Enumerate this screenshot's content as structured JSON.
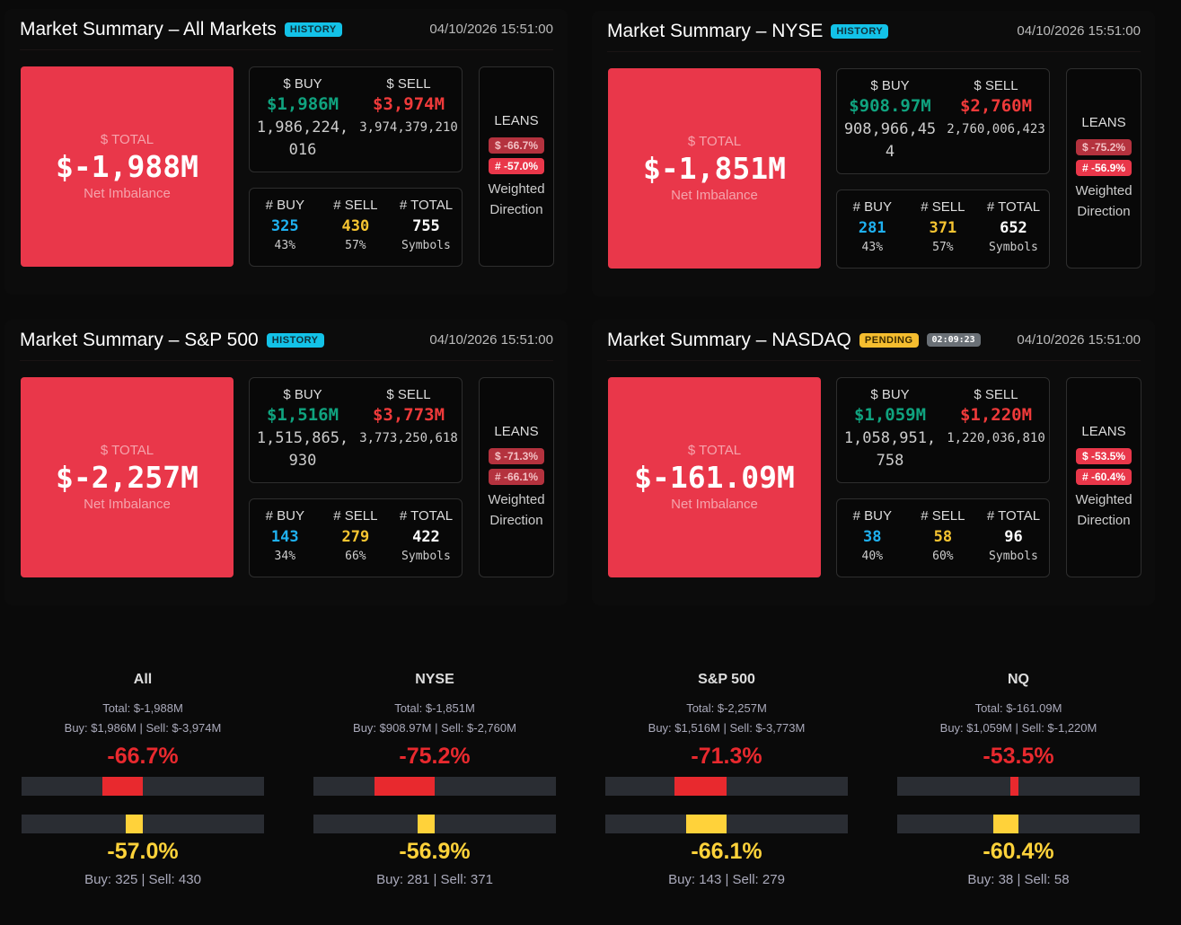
{
  "colors": {
    "buy": "#10a37f",
    "sell": "#ef3a3a",
    "count_buy": "#1fb1f0",
    "count_sell": "#f7c531",
    "count_total": "#ffffff",
    "dollar_bar": "#e8292e",
    "count_bar": "#ffd23a",
    "dollar_pct": "#e8292e",
    "count_pct": "#ffd23a"
  },
  "labels": {
    "total": "$ TOTAL",
    "net": "Net Imbalance",
    "buy": "$ BUY",
    "sell": "$ SELL",
    "nbuy": "# BUY",
    "nsell": "# SELL",
    "ntotal": "# TOTAL",
    "symbols": "Symbols",
    "leans": "LEANS",
    "weighted": "Weighted",
    "direction": "Direction"
  },
  "cards": [
    {
      "title": "Market Summary – All Markets",
      "badge": "HISTORY",
      "badge_type": "history",
      "timestamp": "04/10/2026 15:51:00",
      "total": "$-1,988M",
      "buy": "$1,986M",
      "sell": "$3,974M",
      "buy_raw": "1,986,224,016",
      "sell_raw": "3,974,379,210",
      "nbuy": "325",
      "nsell": "430",
      "ntotal": "755",
      "buy_pct": "43%",
      "sell_pct": "57%",
      "lean_dollar": "$ -66.7%",
      "lean_dollar_style": "dim",
      "lean_count": "# -57.0%",
      "lean_count_style": "strong"
    },
    {
      "title": "Market Summary – NYSE",
      "badge": "HISTORY",
      "badge_type": "history",
      "timestamp": "04/10/2026 15:51:00",
      "total": "$-1,851M",
      "buy": "$908.97M",
      "sell": "$2,760M",
      "buy_raw": "908,966,454",
      "sell_raw": "2,760,006,423",
      "nbuy": "281",
      "nsell": "371",
      "ntotal": "652",
      "buy_pct": "43%",
      "sell_pct": "57%",
      "lean_dollar": "$ -75.2%",
      "lean_dollar_style": "dim",
      "lean_count": "# -56.9%",
      "lean_count_style": "strong"
    },
    {
      "title": "Market Summary – S&P 500",
      "badge": "HISTORY",
      "badge_type": "history",
      "timestamp": "04/10/2026 15:51:00",
      "total": "$-2,257M",
      "buy": "$1,516M",
      "sell": "$3,773M",
      "buy_raw": "1,515,865,930",
      "sell_raw": "3,773,250,618",
      "nbuy": "143",
      "nsell": "279",
      "ntotal": "422",
      "buy_pct": "34%",
      "sell_pct": "66%",
      "lean_dollar": "$ -71.3%",
      "lean_dollar_style": "dim",
      "lean_count": "# -66.1%",
      "lean_count_style": "dim"
    },
    {
      "title": "Market Summary – NASDAQ",
      "badge": "PENDING",
      "badge_type": "pending",
      "timer": "02:09:23",
      "timestamp": "04/10/2026 15:51:00",
      "total": "$-161.09M",
      "buy": "$1,059M",
      "sell": "$1,220M",
      "buy_raw": "1,058,951,758",
      "sell_raw": "1,220,036,810",
      "nbuy": "38",
      "nsell": "58",
      "ntotal": "96",
      "buy_pct": "40%",
      "sell_pct": "60%",
      "lean_dollar": "$ -53.5%",
      "lean_dollar_style": "strong",
      "lean_count": "# -60.4%",
      "lean_count_style": "strong"
    }
  ],
  "summary": [
    {
      "name": "All",
      "total": "Total: $-1,988M",
      "buy": "Buy: $1,986M",
      "sell": "Sell: $-3,974M",
      "dollar_pct": "-66.7%",
      "dollar_fill": 0.33,
      "count_fill": 0.14,
      "count_pct": "-57.0%",
      "nbuy": "Buy: 325",
      "nsell": "Sell: 430"
    },
    {
      "name": "NYSE",
      "total": "Total: $-1,851M",
      "buy": "Buy: $908.97M",
      "sell": "Sell: $-2,760M",
      "dollar_pct": "-75.2%",
      "dollar_fill": 0.5,
      "count_fill": 0.14,
      "count_pct": "-56.9%",
      "nbuy": "Buy: 281",
      "nsell": "Sell: 371"
    },
    {
      "name": "S&P 500",
      "total": "Total: $-2,257M",
      "buy": "Buy: $1,516M",
      "sell": "Sell: $-3,773M",
      "dollar_pct": "-71.3%",
      "dollar_fill": 0.43,
      "count_fill": 0.33,
      "count_pct": "-66.1%",
      "nbuy": "Buy: 143",
      "nsell": "Sell: 279"
    },
    {
      "name": "NQ",
      "total": "Total: $-161.09M",
      "buy": "Buy: $1,059M",
      "sell": "Sell: $-1,220M",
      "dollar_pct": "-53.5%",
      "dollar_fill": 0.07,
      "count_fill": 0.21,
      "count_pct": "-60.4%",
      "nbuy": "Buy: 38",
      "nsell": "Sell: 58"
    }
  ]
}
